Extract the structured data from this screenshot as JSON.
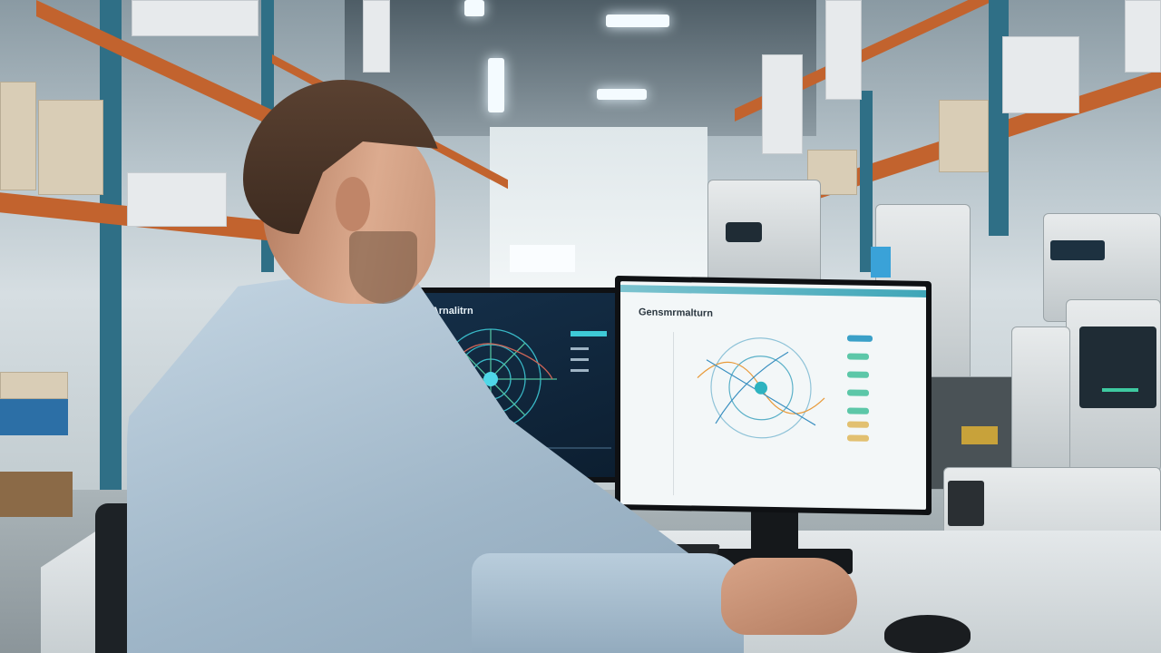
{
  "scene": {
    "description_tags": [
      "warehouse",
      "man",
      "workstation",
      "monitors"
    ]
  },
  "monitor_left": {
    "title": "Gensurt Arnalitrn",
    "accent": "#3ec9d6",
    "background": "#13283c"
  },
  "monitor_right": {
    "title": "Gensmrmalturn",
    "accent": "#4fb3c4",
    "background": "#f3f7f8"
  }
}
